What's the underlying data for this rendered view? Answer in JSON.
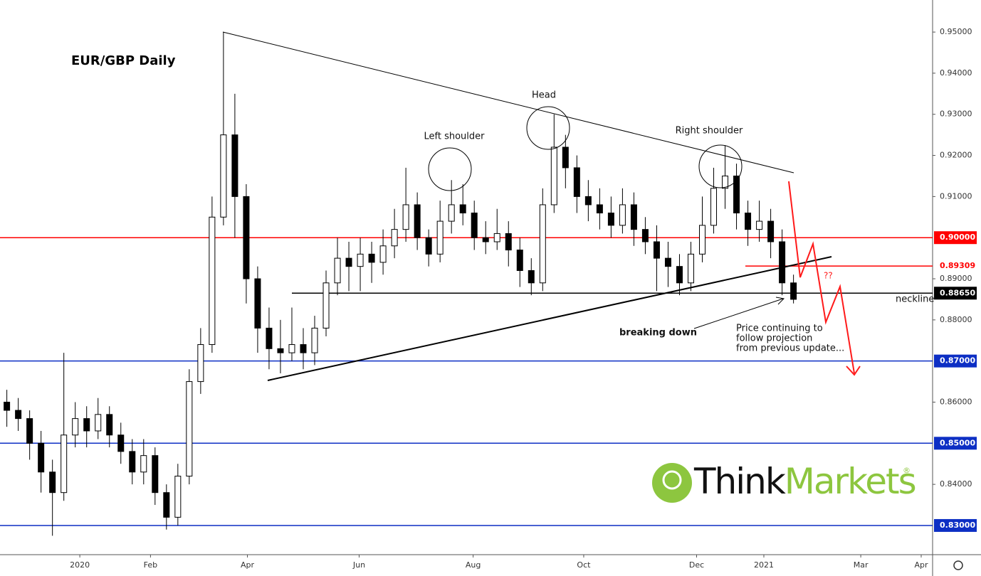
{
  "chart_data": {
    "type": "candlestick",
    "title": "EUR/GBP Daily",
    "open": [
      0.86,
      0.858,
      0.856,
      0.85,
      0.843,
      0.838,
      0.852,
      0.856,
      0.853,
      0.857,
      0.852,
      0.848,
      0.843,
      0.847,
      0.838,
      0.832,
      0.842,
      0.865,
      0.874,
      0.905,
      0.925,
      0.91,
      0.89,
      0.878,
      0.873,
      0.872,
      0.874,
      0.872,
      0.878,
      0.889,
      0.895,
      0.893,
      0.896,
      0.894,
      0.898,
      0.902,
      0.908,
      0.9,
      0.896,
      0.904,
      0.908,
      0.906,
      0.9,
      0.899,
      0.901,
      0.897,
      0.892,
      0.889,
      0.908,
      0.922,
      0.917,
      0.91,
      0.908,
      0.906,
      0.903,
      0.908,
      0.902,
      0.899,
      0.895,
      0.893,
      0.889,
      0.896,
      0.903,
      0.912,
      0.915,
      0.906,
      0.902,
      0.904,
      0.899,
      0.889
    ],
    "high": [
      0.863,
      0.861,
      0.858,
      0.853,
      0.846,
      0.872,
      0.86,
      0.859,
      0.861,
      0.859,
      0.855,
      0.851,
      0.851,
      0.849,
      0.84,
      0.845,
      0.868,
      0.878,
      0.91,
      0.95,
      0.935,
      0.913,
      0.893,
      0.883,
      0.88,
      0.883,
      0.878,
      0.881,
      0.892,
      0.9,
      0.899,
      0.9,
      0.899,
      0.902,
      0.907,
      0.917,
      0.911,
      0.902,
      0.909,
      0.914,
      0.913,
      0.909,
      0.904,
      0.907,
      0.904,
      0.9,
      0.895,
      0.912,
      0.93,
      0.925,
      0.92,
      0.914,
      0.912,
      0.91,
      0.912,
      0.911,
      0.905,
      0.903,
      0.899,
      0.896,
      0.899,
      0.91,
      0.917,
      0.9225,
      0.918,
      0.909,
      0.909,
      0.907,
      0.902,
      0.891
    ],
    "low": [
      0.854,
      0.853,
      0.846,
      0.838,
      0.8275,
      0.836,
      0.849,
      0.849,
      0.851,
      0.849,
      0.845,
      0.84,
      0.84,
      0.835,
      0.829,
      0.83,
      0.84,
      0.862,
      0.872,
      0.903,
      0.9,
      0.884,
      0.872,
      0.868,
      0.867,
      0.87,
      0.868,
      0.869,
      0.876,
      0.886,
      0.887,
      0.887,
      0.889,
      0.891,
      0.895,
      0.899,
      0.897,
      0.893,
      0.894,
      0.901,
      0.903,
      0.897,
      0.896,
      0.897,
      0.893,
      0.888,
      0.886,
      0.887,
      0.906,
      0.912,
      0.906,
      0.904,
      0.902,
      0.9,
      0.901,
      0.898,
      0.896,
      0.887,
      0.888,
      0.886,
      0.887,
      0.894,
      0.901,
      0.907,
      0.902,
      0.898,
      0.899,
      0.895,
      0.886,
      0.884
    ],
    "close": [
      0.858,
      0.856,
      0.85,
      0.843,
      0.838,
      0.852,
      0.856,
      0.853,
      0.857,
      0.852,
      0.848,
      0.843,
      0.847,
      0.838,
      0.832,
      0.842,
      0.865,
      0.874,
      0.905,
      0.925,
      0.91,
      0.89,
      0.878,
      0.873,
      0.872,
      0.874,
      0.872,
      0.878,
      0.889,
      0.895,
      0.893,
      0.896,
      0.894,
      0.898,
      0.902,
      0.908,
      0.9,
      0.896,
      0.904,
      0.908,
      0.906,
      0.9,
      0.899,
      0.901,
      0.897,
      0.892,
      0.889,
      0.908,
      0.922,
      0.917,
      0.91,
      0.908,
      0.906,
      0.903,
      0.908,
      0.902,
      0.899,
      0.895,
      0.893,
      0.889,
      0.896,
      0.903,
      0.912,
      0.915,
      0.906,
      0.902,
      0.904,
      0.899,
      0.889,
      0.885
    ],
    "up_color": "#ffffff",
    "down_color": "#000000",
    "wick_color": "#000000",
    "xlim": [
      -0.6,
      81.2
    ],
    "xticks": [
      {
        "value": 6.4,
        "label": "2020"
      },
      {
        "value": 12.6,
        "label": "Feb"
      },
      {
        "value": 21.1,
        "label": "Apr"
      },
      {
        "value": 30.9,
        "label": "Jun"
      },
      {
        "value": 40.9,
        "label": "Aug"
      },
      {
        "value": 50.6,
        "label": "Oct"
      },
      {
        "value": 60.5,
        "label": "Dec"
      },
      {
        "value": 66.4,
        "label": "2021"
      },
      {
        "value": 74.9,
        "label": "Mar"
      },
      {
        "value": 80.2,
        "label": "Apr"
      }
    ],
    "ylim": [
      0.8229,
      0.9578
    ],
    "yticks": [
      {
        "value": 0.95,
        "label": "0.95000"
      },
      {
        "value": 0.94,
        "label": "0.94000"
      },
      {
        "value": 0.93,
        "label": "0.93000"
      },
      {
        "value": 0.92,
        "label": "0.92000"
      },
      {
        "value": 0.91,
        "label": "0.91000"
      },
      {
        "value": 0.89,
        "label": "0.89000"
      },
      {
        "value": 0.88,
        "label": "0.88000"
      },
      {
        "value": 0.86,
        "label": "0.86000"
      },
      {
        "value": 0.84,
        "label": "0.84000"
      }
    ],
    "levels": [
      {
        "value": 0.9,
        "label": "0.90000",
        "color": "#ff0000"
      },
      {
        "value": 0.89309,
        "label": "0.89309",
        "color": "#ff0000"
      },
      {
        "value": 0.8865,
        "label": "0.88650",
        "color": "#000000"
      },
      {
        "value": 0.87,
        "label": "0.87000",
        "color": "#0d2fc4"
      },
      {
        "value": 0.85,
        "label": "0.85000",
        "color": "#0d2fc4"
      },
      {
        "value": 0.83,
        "label": "0.83000",
        "color": "#0d2fc4"
      }
    ],
    "annotations": {
      "left_shoulder": "Left shoulder",
      "head": "Head",
      "right_shoulder": "Right shoulder",
      "breaking_down": "breaking down",
      "neckline": "neckline",
      "question": "??",
      "note": [
        "Price continuing to",
        "follow projection",
        "from previous update..."
      ]
    },
    "logo": {
      "think": "Think",
      "markets": "Markets",
      "mark": "®"
    }
  }
}
